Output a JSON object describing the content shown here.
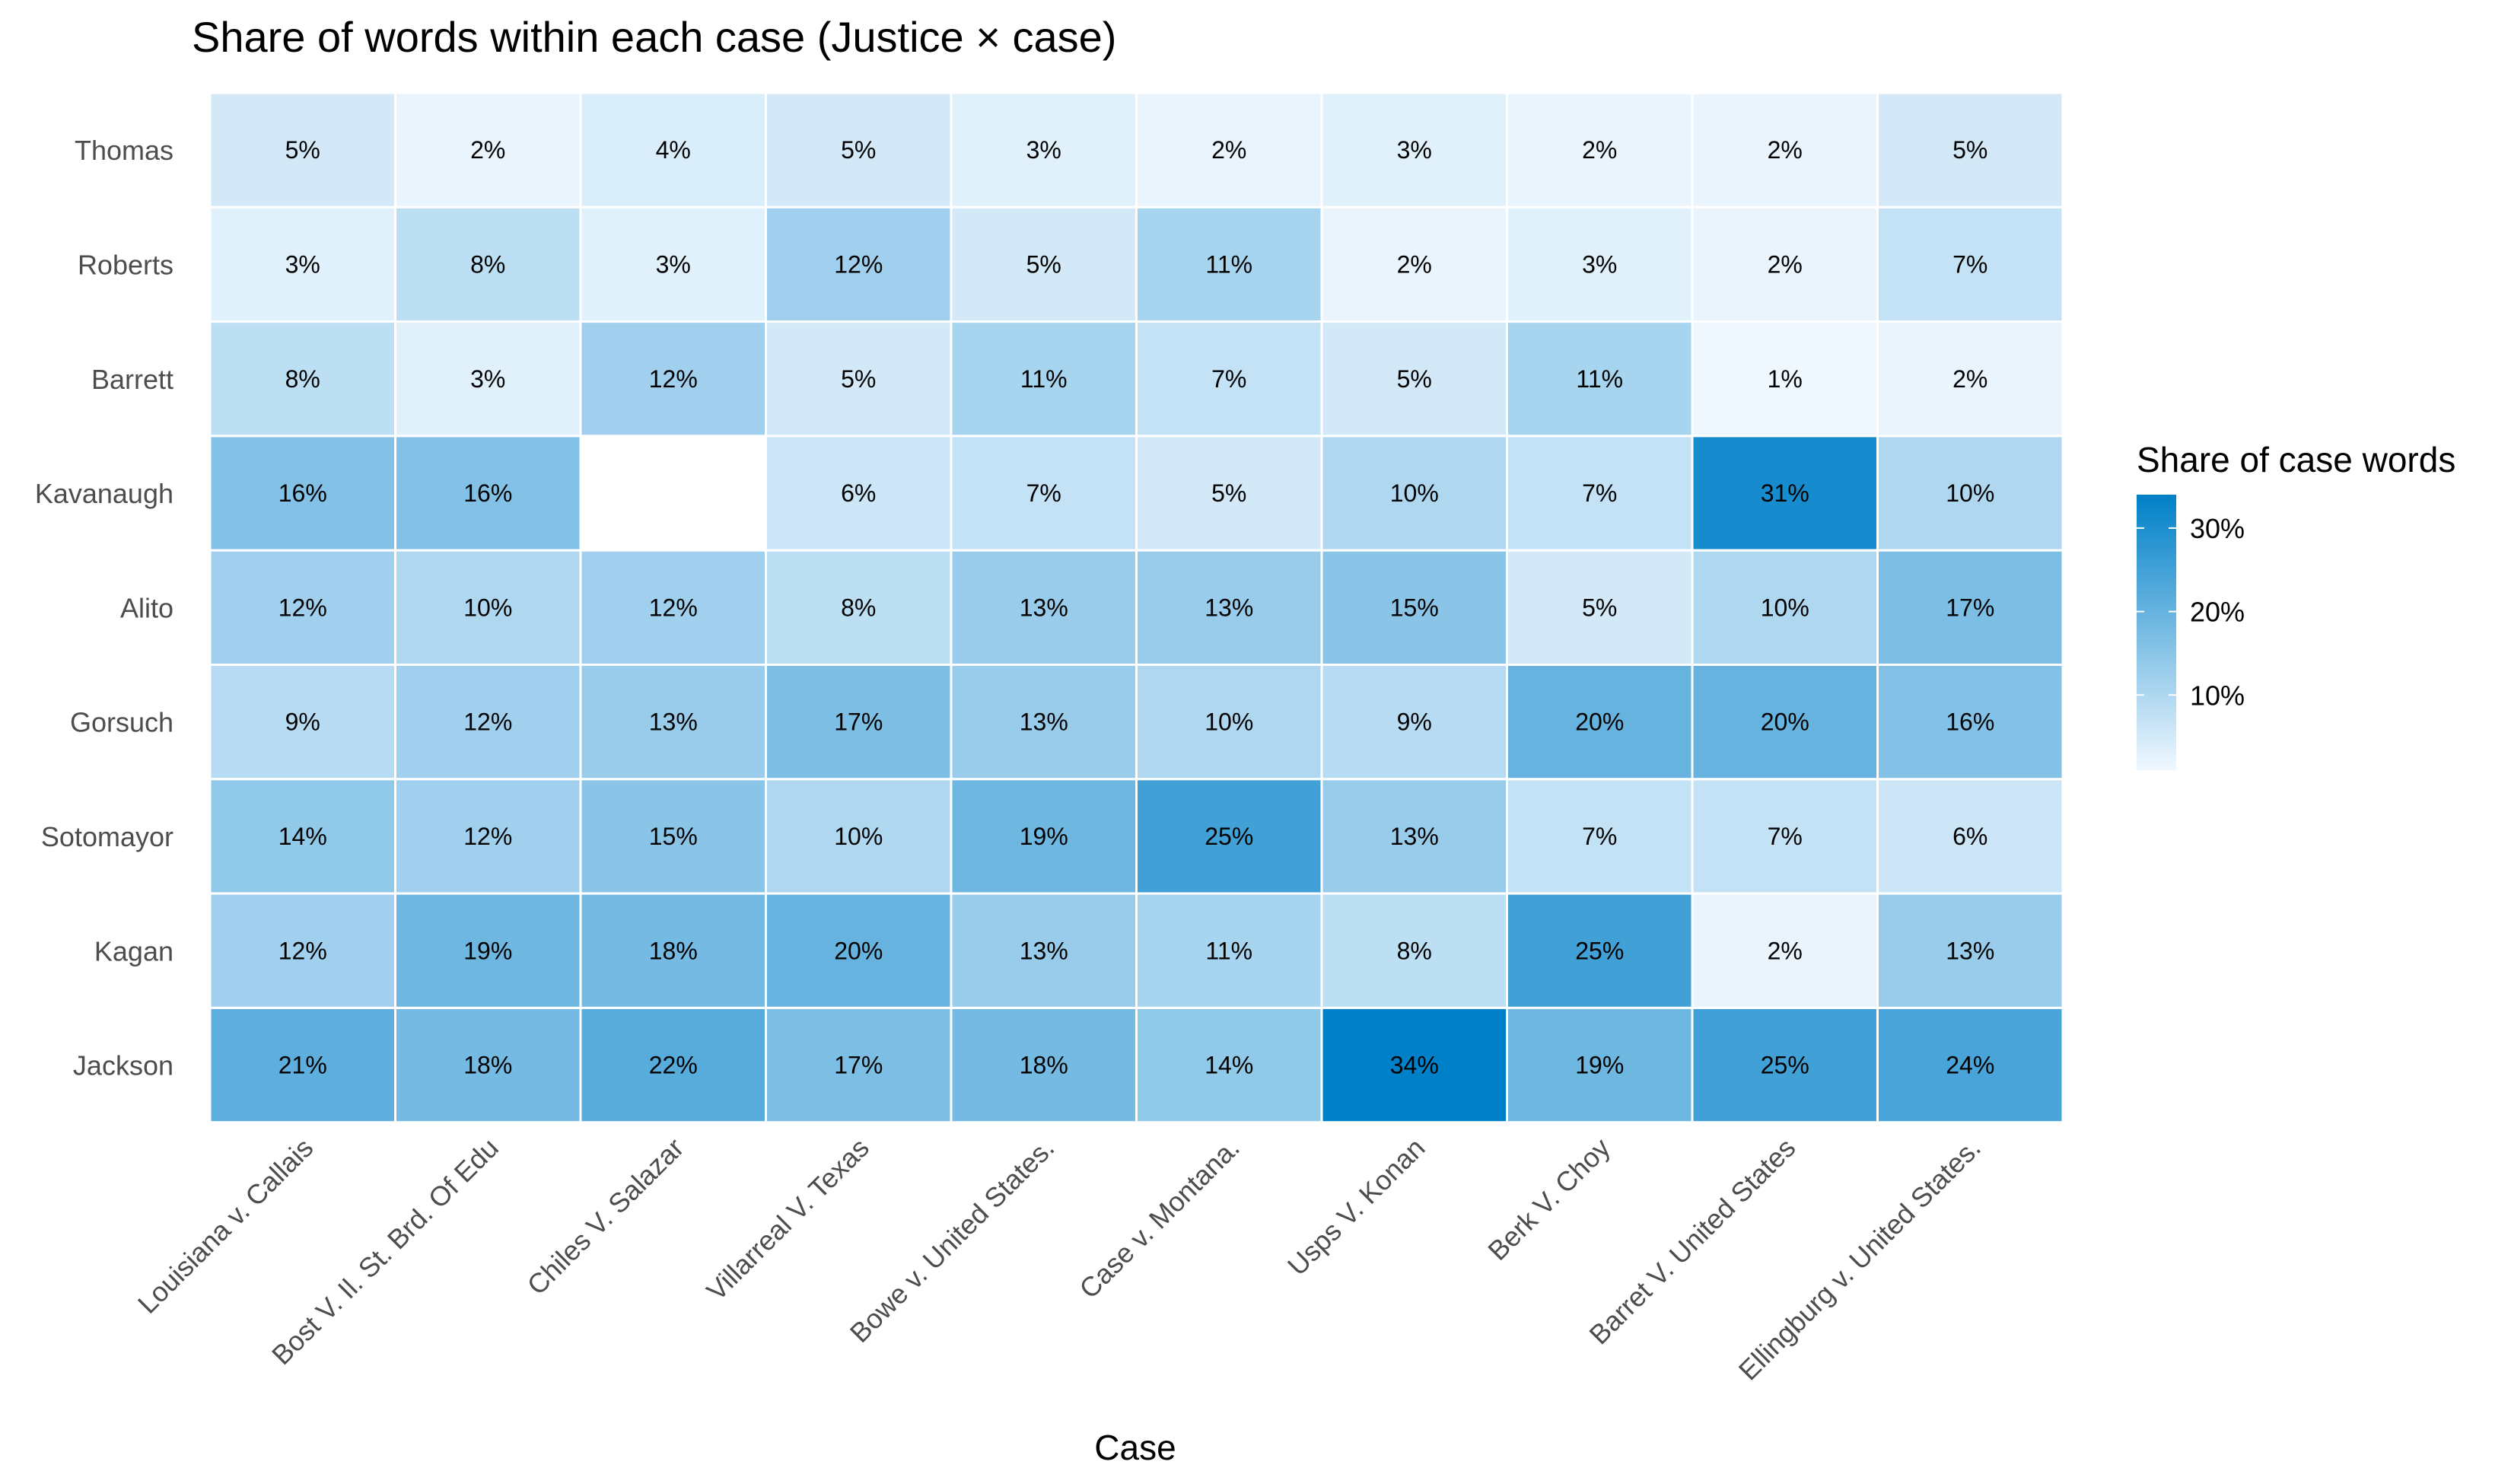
{
  "chart_data": {
    "type": "heatmap",
    "title": "Share of words within each case (Justice × case)",
    "xlabel": "Case",
    "ylabel": "",
    "rows": [
      "Thomas",
      "Roberts",
      "Barrett",
      "Kavanaugh",
      "Alito",
      "Gorsuch",
      "Sotomayor",
      "Kagan",
      "Jackson"
    ],
    "columns": [
      "Louisiana v. Callais",
      "Bost V. Il. St. Brd. Of Edu",
      "Chiles V. Salazar",
      "Villarreal V. Texas",
      "Bowe v. United States.",
      "Case v. Montana.",
      "Usps V. Konan",
      "Berk V. Choy",
      "Barret V. United States",
      "Ellingburg v. United States."
    ],
    "values": [
      [
        5,
        2,
        4,
        5,
        3,
        2,
        3,
        2,
        2,
        5
      ],
      [
        3,
        8,
        3,
        12,
        5,
        11,
        2,
        3,
        2,
        7
      ],
      [
        8,
        3,
        12,
        5,
        11,
        7,
        5,
        11,
        1,
        2
      ],
      [
        16,
        16,
        null,
        6,
        7,
        5,
        10,
        7,
        31,
        10
      ],
      [
        12,
        10,
        12,
        8,
        13,
        13,
        15,
        5,
        10,
        17
      ],
      [
        9,
        12,
        13,
        17,
        13,
        10,
        9,
        20,
        20,
        16
      ],
      [
        14,
        12,
        15,
        10,
        19,
        25,
        13,
        7,
        7,
        6
      ],
      [
        12,
        19,
        18,
        20,
        13,
        11,
        8,
        25,
        2,
        13
      ],
      [
        21,
        18,
        22,
        17,
        18,
        14,
        34,
        19,
        25,
        24
      ]
    ],
    "value_suffix": "%",
    "color_scale": {
      "low": "#f0f8ff",
      "high": "#0080c8",
      "domain": [
        1,
        34
      ]
    },
    "legend": {
      "title": "Share of case words",
      "ticks": [
        10,
        20,
        30
      ],
      "tick_labels": [
        "10%",
        "20%",
        "30%"
      ],
      "placement": "right"
    }
  }
}
